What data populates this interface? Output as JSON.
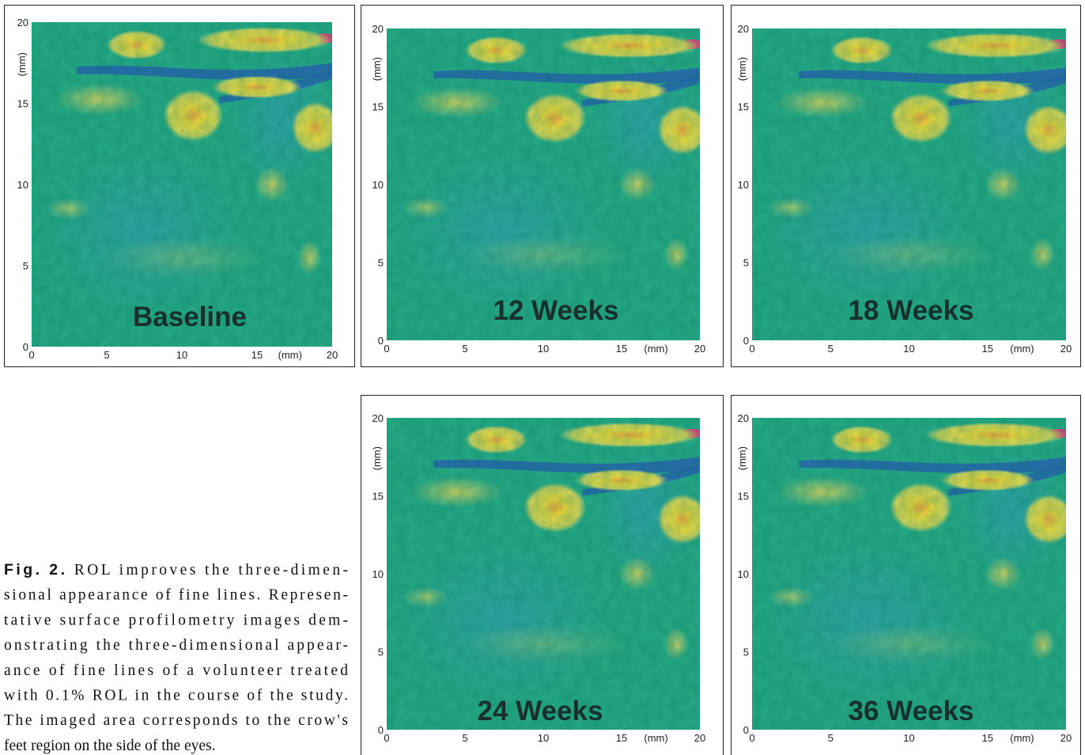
{
  "figure": {
    "panels": [
      {
        "label": "Baseline",
        "x_unit": "(mm)",
        "y_unit": "(mm)",
        "xticks": [
          0,
          5,
          10,
          15,
          20
        ],
        "yticks": [
          0,
          5,
          10,
          15,
          20
        ]
      },
      {
        "label": "12 Weeks",
        "x_unit": "(mm)",
        "y_unit": "(mm)",
        "xticks": [
          0,
          5,
          10,
          15,
          20
        ],
        "yticks": [
          0,
          5,
          10,
          15,
          20
        ]
      },
      {
        "label": "18 Weeks",
        "x_unit": "(mm)",
        "y_unit": "(mm)",
        "xticks": [
          0,
          5,
          10,
          15,
          20
        ],
        "yticks": [
          0,
          5,
          10,
          15,
          20
        ]
      },
      {
        "label": "24 Weeks",
        "x_unit": "(mm)",
        "y_unit": "(mm)",
        "xticks": [
          0,
          5,
          10,
          15,
          20
        ],
        "yticks": [
          0,
          5,
          10,
          15,
          20
        ]
      },
      {
        "label": "36 Weeks",
        "x_unit": "(mm)",
        "y_unit": "(mm)",
        "xticks": [
          0,
          5,
          10,
          15,
          20
        ],
        "yticks": [
          0,
          5,
          10,
          15,
          20
        ]
      }
    ],
    "caption": {
      "label": "Fig. 2.",
      "lines": [
        " ROL improves the three-dimen-",
        "sional appearance of fine lines. Represen-",
        "tative surface profilometry images dem-",
        "onstrating the three-dimensional appear-",
        "ance of fine lines of a volunteer treated",
        "with 0.1% ROL in the course of the study.",
        "The imaged area corresponds to the crow's",
        "feet region on the side of the eyes."
      ]
    }
  }
}
